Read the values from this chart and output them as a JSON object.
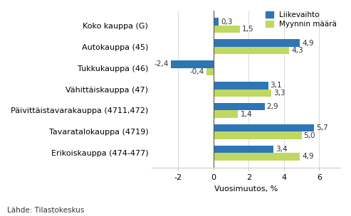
{
  "categories": [
    "Koko kauppa (G)",
    "Autokauppa (45)",
    "Tukkukauppa (46)",
    "Vähittäiskauppa (47)",
    "Päivittäistavarakauppa (4711,472)",
    "Tavaratalokauppa (4719)",
    "Erikoiskauppa (474-477)"
  ],
  "liikevaihto": [
    0.3,
    4.9,
    -2.4,
    3.1,
    2.9,
    5.7,
    3.4
  ],
  "myynnin_maara": [
    1.5,
    4.3,
    -0.4,
    3.3,
    1.4,
    5.0,
    4.9
  ],
  "color_liikevaihto": "#2E75B6",
  "color_myynnin": "#C0D860",
  "xlabel": "Vuosimuutos, %",
  "legend_liikevaihto": "Liikevaihto",
  "legend_myynnin": "Myynnin määrä",
  "source": "Lähde: Tilastokeskus",
  "xlim": [
    -3.5,
    7.2
  ],
  "xticks": [
    -2,
    0,
    2,
    4,
    6
  ],
  "bar_height": 0.35
}
